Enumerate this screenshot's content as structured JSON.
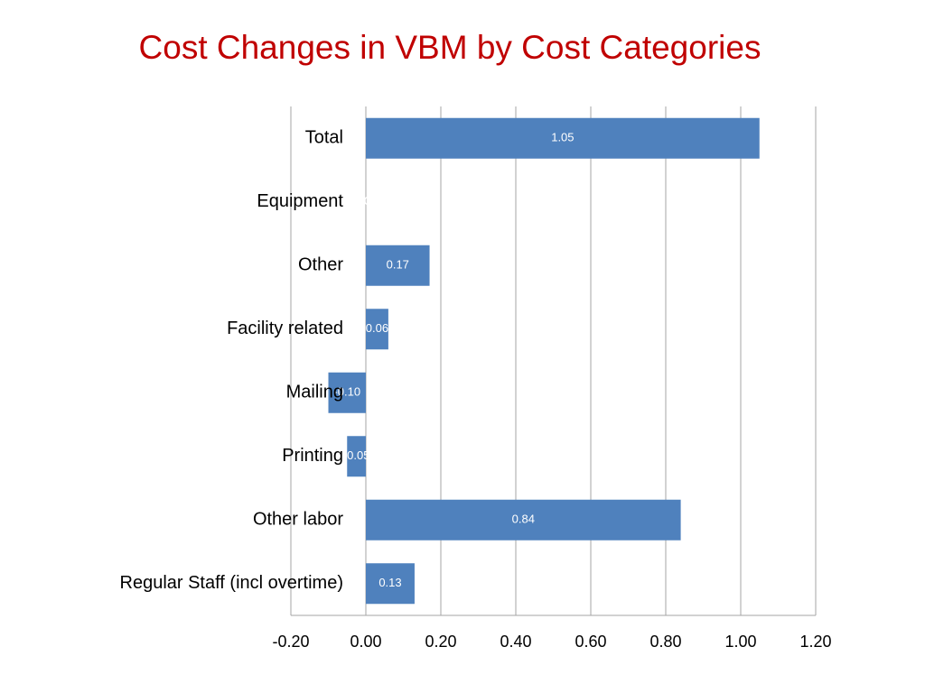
{
  "chart_data": {
    "type": "barh",
    "title": "Cost Changes in VBM by Cost Categories",
    "categories": [
      "Total",
      "Equipment",
      "Other",
      "Facility related",
      "Mailing",
      "Printing",
      "Other labor",
      "Regular Staff (incl overtime)"
    ],
    "values": [
      1.05,
      0,
      0.17,
      0.06,
      -0.1,
      -0.05,
      0.84,
      0.13
    ],
    "value_labels": [
      "1.05",
      "0.00",
      "0.17",
      "0.06",
      "-0.10",
      "-0.05",
      "0.84",
      "0.13"
    ],
    "color": "#4f81bd",
    "xlim": [
      -0.2,
      1.2
    ],
    "xticks": [
      {
        "value": -0.2,
        "label": "-0.20"
      },
      {
        "value": 0,
        "label": "0.00"
      },
      {
        "value": 0.2,
        "label": "0.20"
      },
      {
        "value": 0.4,
        "label": "0.40"
      },
      {
        "value": 0.6,
        "label": "0.60"
      },
      {
        "value": 0.8,
        "label": "0.80"
      },
      {
        "value": 1.0,
        "label": "1.00"
      },
      {
        "value": 1.2,
        "label": "1.20"
      }
    ],
    "grid": true
  }
}
